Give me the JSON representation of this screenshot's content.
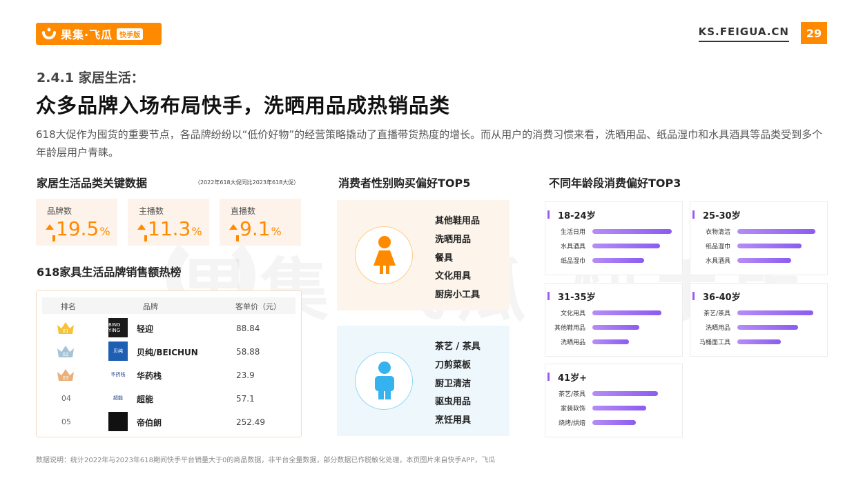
{
  "header": {
    "brand": "果集·飞瓜",
    "brand_tag": "快手版",
    "site": "KS.FEIGUA.CN",
    "page_number": "29"
  },
  "section_title": "2.4.1 家居生活：",
  "headline": "众多品牌入场布局快手，洗晒用品成热销品类",
  "description": "618大促作为囤货的重要节点，各品牌纷纷以“低价好物”的经营策略撬动了直播带货热度的增长。而从用户的消费习惯来看，洗晒用品、纸品湿巾和水具酒具等品类受到多个年龄层用户青睐。",
  "watermark": "果集·飞瓜 快手版",
  "key_data": {
    "title": "家居生活品类关键数据",
    "note": "（2022年618大促同比2023年618大促）",
    "cards": [
      {
        "label": "品牌数",
        "value": "19.5",
        "unit": "%"
      },
      {
        "label": "主播数",
        "value": "11.3",
        "unit": "%"
      },
      {
        "label": "直播数",
        "value": "9.1",
        "unit": "%"
      }
    ]
  },
  "ranking": {
    "title": "618家具生活品牌销售额热榜",
    "columns": [
      "排名",
      "品牌",
      "客单价（元）"
    ],
    "rows": [
      {
        "rank": "01",
        "logo_text": "BING YING",
        "brand": "轻迎",
        "price": "88.84",
        "logo_color": "#1a1a1a"
      },
      {
        "rank": "02",
        "logo_text": "贝纯",
        "brand": "贝纯/BEICHUN",
        "price": "58.88",
        "logo_color": "#1e5fb4"
      },
      {
        "rank": "03",
        "logo_text": "华药栈",
        "brand": "华药栈",
        "price": "23.9",
        "logo_color": "#ffffff"
      },
      {
        "rank": "04",
        "logo_text": "超能",
        "brand": "超能",
        "price": "57.1",
        "logo_color": "#ffffff"
      },
      {
        "rank": "05",
        "logo_text": "",
        "brand": "帝伯朗",
        "price": "252.49",
        "logo_color": "#111111"
      }
    ],
    "crown_colors": [
      "#f7c23a",
      "#a9c3d6",
      "#e9b07a"
    ]
  },
  "gender": {
    "title": "消费者性别购买偏好TOP5",
    "female": [
      "其他鞋用品",
      "洗晒用品",
      "餐具",
      "文化用具",
      "厨房小工具"
    ],
    "male": [
      "茶艺 / 茶具",
      "刀剪菜板",
      "厨卫清洁",
      "驱虫用品",
      "烹饪用具"
    ],
    "female_color": "#ff8a00",
    "male_color": "#35b3ee"
  },
  "age": {
    "title": "不同年龄段消费偏好TOP3",
    "groups": [
      {
        "label": "18-24岁",
        "items": [
          {
            "name": "生活日用",
            "v": 0.92
          },
          {
            "name": "水具酒具",
            "v": 0.78
          },
          {
            "name": "纸品湿巾",
            "v": 0.6
          }
        ]
      },
      {
        "label": "25-30岁",
        "items": [
          {
            "name": "衣物清洁",
            "v": 0.9
          },
          {
            "name": "纸品湿巾",
            "v": 0.74
          },
          {
            "name": "水具酒具",
            "v": 0.62
          }
        ]
      },
      {
        "label": "31-35岁",
        "items": [
          {
            "name": "文化用具",
            "v": 0.8
          },
          {
            "name": "其他鞋用品",
            "v": 0.54
          },
          {
            "name": "洗晒用品",
            "v": 0.42
          }
        ]
      },
      {
        "label": "36-40岁",
        "items": [
          {
            "name": "茶艺/茶具",
            "v": 0.88
          },
          {
            "name": "洗晒用品",
            "v": 0.7
          },
          {
            "name": "马桶面工具",
            "v": 0.5
          }
        ]
      },
      {
        "label": "41岁+",
        "items": [
          {
            "name": "茶艺/茶具",
            "v": 0.76
          },
          {
            "name": "家装软饰",
            "v": 0.62
          },
          {
            "name": "烧烤/烘焙",
            "v": 0.5
          }
        ]
      }
    ],
    "bar_color": "#9b6cf4"
  },
  "footer": "数据说明：统计2022年与2023年618期间快手平台销量大于0的商品数据，非平台全量数据，部分数据已作脱敏化处理，本页图片来自快手APP，飞瓜"
}
